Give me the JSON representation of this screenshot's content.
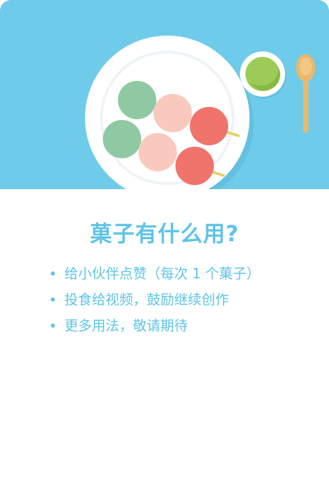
{
  "illustration": {
    "icon": "dango-plate-illustration",
    "background_color": "#6fcbea",
    "plate_color": "#ffffff",
    "dango_colors": [
      "#8fc9a3",
      "#f9c9bd",
      "#f0736c"
    ],
    "tea_color": "#9ccb57",
    "spoon_color": "#e9b86d"
  },
  "title": "菓子有什么用?",
  "list": {
    "items": [
      "给小伙伴点赞（每次 1 个菓子）",
      "投食给视频，鼓励继续创作",
      "更多用法，敬请期待"
    ]
  },
  "colors": {
    "accent": "#5fc4e6"
  }
}
